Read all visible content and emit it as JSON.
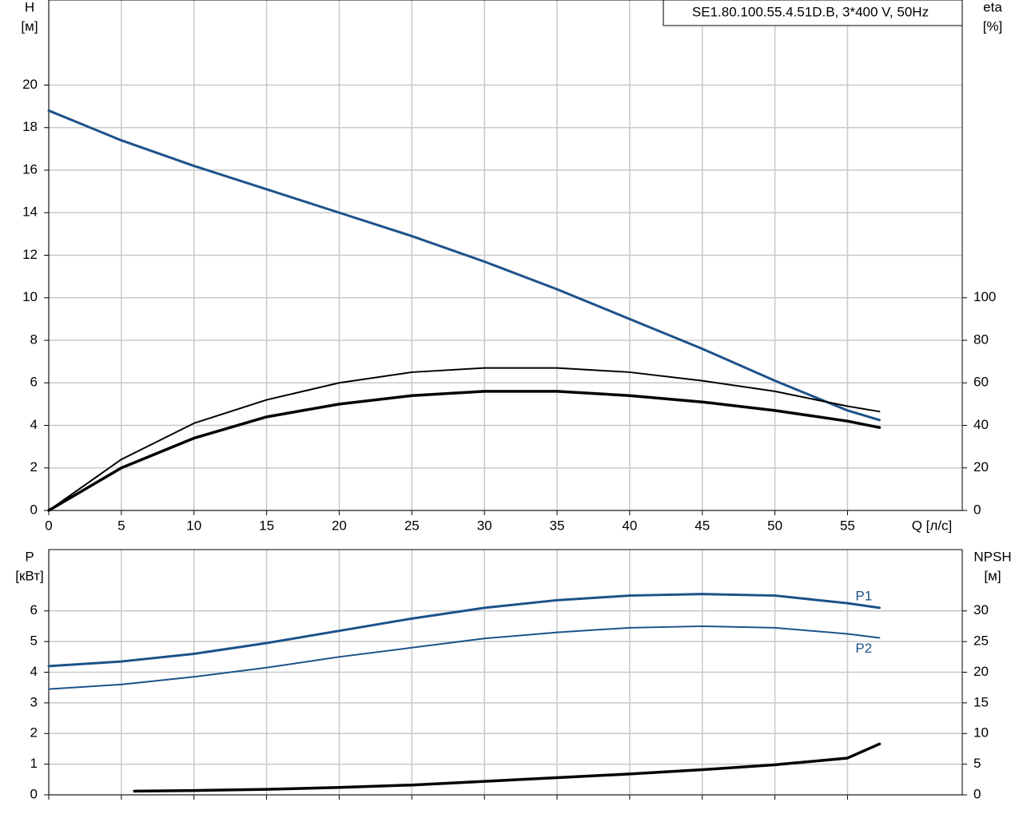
{
  "chart_data": [
    {
      "type": "line",
      "title": "SE1.80.100.55.4.51D.B, 3*400 V, 50Hz",
      "ylabel": "H",
      "yunit": "[м]",
      "y2label": "eta",
      "y2unit": "[%]",
      "xlabel": "Q [л/с]",
      "xlim": [
        0,
        62.9
      ],
      "xticks": [
        0,
        5,
        10,
        15,
        20,
        25,
        30,
        35,
        40,
        45,
        50,
        55
      ],
      "ylim": [
        0,
        24
      ],
      "yticks": [
        0,
        2,
        4,
        6,
        8,
        10,
        12,
        14,
        16,
        18,
        20
      ],
      "y2lim": [
        0,
        240
      ],
      "y2ticks": [
        0,
        20,
        40,
        60,
        80,
        100
      ],
      "grid": true,
      "x": [
        0,
        5,
        10,
        15,
        20,
        25,
        30,
        35,
        40,
        45,
        50,
        55,
        57.2
      ],
      "series": [
        {
          "color": "#1c5289",
          "linewidth": 3,
          "values": [
            18.8,
            17.4,
            16.2,
            15.1,
            14.0,
            12.9,
            11.7,
            10.4,
            9.0,
            7.6,
            6.1,
            4.7,
            4.25
          ]
        },
        {
          "color": "#000000",
          "linewidth": 2,
          "axis": "y2",
          "values": [
            0,
            24,
            41,
            52,
            60,
            65,
            67,
            67,
            65,
            61,
            56,
            49,
            46.5
          ]
        },
        {
          "color": "#000000",
          "linewidth": 3.5,
          "axis": "y2",
          "values": [
            0,
            20,
            34,
            44,
            50,
            54,
            56,
            56,
            54,
            51,
            47,
            42,
            39
          ]
        }
      ]
    },
    {
      "type": "line",
      "ylabel": "P",
      "yunit": "[кВт]",
      "y2label": "NPSH",
      "y2unit": "[м]",
      "xlim": [
        0,
        62.9
      ],
      "ylim": [
        0,
        8
      ],
      "yticks": [
        0,
        1,
        2,
        3,
        4,
        5,
        6
      ],
      "y2lim": [
        0,
        40
      ],
      "y2ticks": [
        0,
        5,
        10,
        15,
        20,
        25,
        30
      ],
      "grid": true,
      "x": [
        0,
        5,
        10,
        15,
        20,
        25,
        30,
        35,
        40,
        45,
        50,
        55,
        57.2
      ],
      "series": [
        {
          "name": "P1",
          "color": "#1c5289",
          "linewidth": 3,
          "values": [
            4.2,
            4.35,
            4.6,
            4.95,
            5.35,
            5.75,
            6.1,
            6.35,
            6.5,
            6.55,
            6.5,
            6.25,
            6.1
          ]
        },
        {
          "name": "P2",
          "color": "#1c5289",
          "linewidth": 2,
          "values": [
            3.45,
            3.6,
            3.85,
            4.15,
            4.5,
            4.8,
            5.1,
            5.3,
            5.45,
            5.5,
            5.45,
            5.25,
            5.12
          ]
        },
        {
          "color": "#000000",
          "linewidth": 3.5,
          "axis": "y2",
          "x": [
            5.9,
            10,
            15,
            20,
            25,
            30,
            35,
            40,
            45,
            50,
            55,
            57.2
          ],
          "values": [
            0.6,
            0.7,
            0.9,
            1.2,
            1.6,
            2.2,
            2.8,
            3.4,
            4.1,
            4.9,
            6.0,
            8.3
          ]
        }
      ]
    }
  ]
}
